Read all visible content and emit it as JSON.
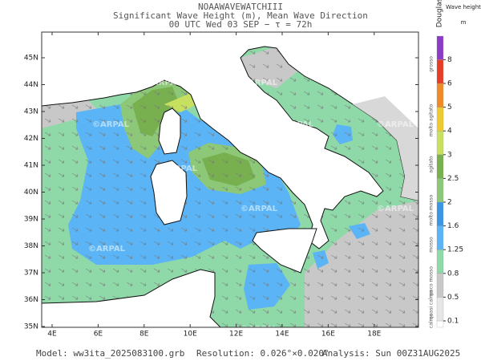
{
  "header": {
    "model_name": "NOAAWAVEWATCHIII",
    "title": "Significant Wave Height (m), Mean Wave Direction",
    "forecast_time": "00 UTC Wed 03 SEP   −  τ = 72h"
  },
  "map": {
    "watermark": "©ARPAL",
    "lon_ticks": [
      {
        "value": 4,
        "label": "4E"
      },
      {
        "value": 6,
        "label": "6E"
      },
      {
        "value": 8,
        "label": "8E"
      },
      {
        "value": 10,
        "label": "10E"
      },
      {
        "value": 12,
        "label": "12E"
      },
      {
        "value": 14,
        "label": "14E"
      },
      {
        "value": 16,
        "label": "16E"
      },
      {
        "value": 18,
        "label": "18E"
      }
    ],
    "lat_ticks": [
      {
        "value": 35,
        "label": "35N"
      },
      {
        "value": 36,
        "label": "36N"
      },
      {
        "value": 37,
        "label": "37N"
      },
      {
        "value": 38,
        "label": "38N"
      },
      {
        "value": 39,
        "label": "39N"
      },
      {
        "value": 40,
        "label": "40N"
      },
      {
        "value": 41,
        "label": "41N"
      },
      {
        "value": 42,
        "label": "42N"
      },
      {
        "value": 43,
        "label": "43N"
      },
      {
        "value": 44,
        "label": "44N"
      },
      {
        "value": 45,
        "label": "45N"
      }
    ]
  },
  "colorbar": {
    "scale_title": "Douglas",
    "title": "Wave height",
    "unit": "m",
    "levels": [
      0.1,
      0.5,
      0.8,
      1.25,
      1.6,
      2,
      2.5,
      3,
      4,
      5,
      6,
      8
    ],
    "colors": [
      "#ffffff",
      "#e6e6e6",
      "#c8c8c8",
      "#8fd8a8",
      "#5ab4f5",
      "#3c96e6",
      "#8cc878",
      "#78b050",
      "#c8e060",
      "#f0c830",
      "#f08c28",
      "#e63c28",
      "#8c3cc8"
    ],
    "douglas_labels": [
      "calmo",
      "quasi calmo",
      "poco mosso",
      "mosso",
      "molto mosso",
      "agitato",
      "molto agitato",
      "grosso"
    ]
  },
  "footer": {
    "model": "Model: ww3ita_2025083100.grb",
    "resolution": "Resolution: 0.026°×0.020°",
    "analysis": "Analysis: Sun 00Z31AUG2025"
  }
}
